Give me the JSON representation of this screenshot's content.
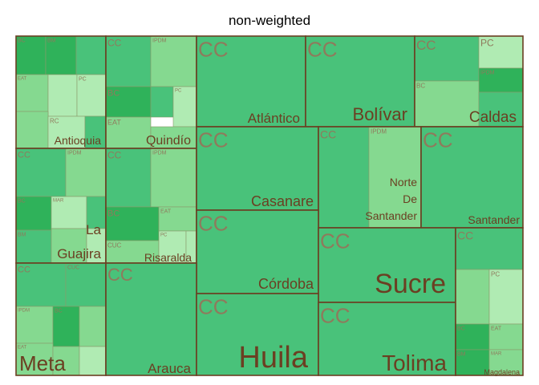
{
  "title": "non-weighted",
  "chart_data": {
    "type": "treemap",
    "title": "non-weighted",
    "groups": [
      {
        "name": "Antioquia",
        "children": [
          "BC",
          "BM",
          "EAT",
          "PC",
          "RC"
        ]
      },
      {
        "name": "Quindío",
        "children": [
          "CC",
          "IPDM",
          "BC",
          "PC",
          "EAT"
        ]
      },
      {
        "name": "Atlántico",
        "children": [
          "CC"
        ]
      },
      {
        "name": "Bolívar",
        "children": [
          "CC"
        ]
      },
      {
        "name": "Caldas",
        "children": [
          "CC",
          "PC",
          "IPDM",
          "BC"
        ]
      },
      {
        "name": "La Guajira",
        "children": [
          "CC",
          "IPDM",
          "BC",
          "MAR",
          "BM"
        ]
      },
      {
        "name": "Risaralda",
        "children": [
          "CC",
          "IPDM",
          "BC",
          "EAT",
          "CUC",
          "PC"
        ]
      },
      {
        "name": "Casanare",
        "children": [
          "CC"
        ]
      },
      {
        "name": "Norte De Santander",
        "children": [
          "CC",
          "IPDM"
        ]
      },
      {
        "name": "Santander",
        "children": [
          "CC"
        ]
      },
      {
        "name": "Córdoba",
        "children": [
          "CC"
        ]
      },
      {
        "name": "Sucre",
        "children": [
          "CC"
        ]
      },
      {
        "name": "Meta",
        "children": [
          "CC",
          "CUC",
          "IPDM",
          "BC",
          "EAT"
        ]
      },
      {
        "name": "Arauca",
        "children": [
          "CC"
        ]
      },
      {
        "name": "Huila",
        "children": [
          "CC"
        ]
      },
      {
        "name": "Tolima",
        "children": [
          "CC"
        ]
      },
      {
        "name": "Magdalena",
        "children": [
          "CC",
          "PC",
          "BC",
          "EAT",
          "BM",
          "MAR"
        ]
      }
    ]
  }
}
